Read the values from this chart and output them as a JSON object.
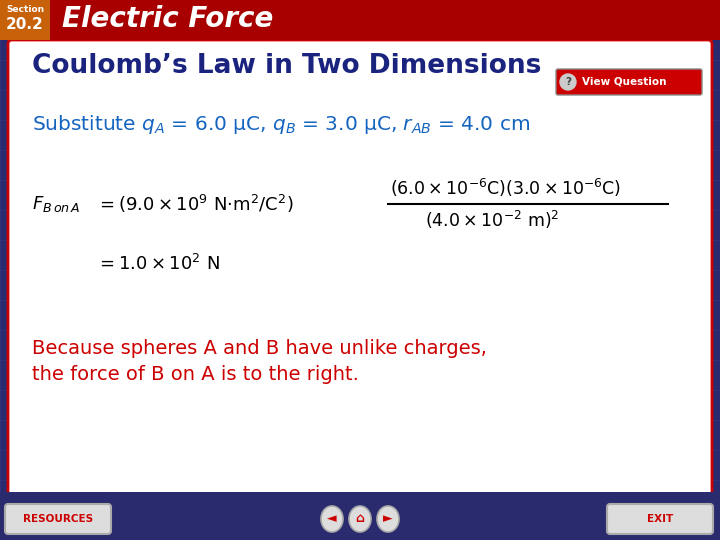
{
  "bg_outer_color": "#2a2a6e",
  "bg_inner_color": "#ffffff",
  "header_bg_color": "#a80000",
  "header_accent_color": "#c8620a",
  "header_section_label": "Section",
  "header_section_number": "20.2",
  "header_title": "Electric Force",
  "slide_title": "Coulomb’s Law in Two Dimensions",
  "slide_title_color": "#1a237e",
  "substitute_text_color": "#1565c0",
  "equation_color": "#000000",
  "conclusion_color": "#cc0000",
  "footer_resources_text": "RESOURCES",
  "footer_exit_text": "EXIT"
}
